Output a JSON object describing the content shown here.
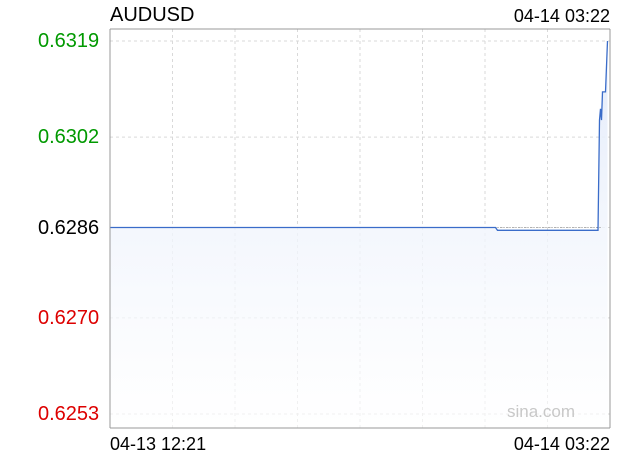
{
  "header": {
    "symbol": "AUDUSD",
    "timestamp": "04-14 03:22"
  },
  "watermark": "sina.com",
  "colors": {
    "up": "#009900",
    "down": "#dd0000",
    "neutral": "#000000",
    "line": "#3a6cc9",
    "fill": "#e3ebfa",
    "grid": "#d9d9d9",
    "axis": "#999999"
  },
  "chart_data": {
    "type": "area",
    "title": "AUDUSD",
    "xlabel": "",
    "ylabel": "",
    "ylim": [
      0.6253,
      0.6319
    ],
    "x_ticks": [
      "04-13 12:21",
      "04-14 03:22"
    ],
    "y_ticks": [
      {
        "label": "0.6319",
        "value": 0.6319,
        "tone": "up"
      },
      {
        "label": "0.6302",
        "value": 0.6302,
        "tone": "up"
      },
      {
        "label": "0.6286",
        "value": 0.6286,
        "tone": "neutral"
      },
      {
        "label": "0.6270",
        "value": 0.627,
        "tone": "down"
      },
      {
        "label": "0.6253",
        "value": 0.6253,
        "tone": "down"
      }
    ],
    "reference_value": 0.6286,
    "grid": true,
    "series": [
      {
        "values": [
          {
            "t": 0.0,
            "v": 0.6286
          },
          {
            "t": 0.771,
            "v": 0.6286
          },
          {
            "t": 0.775,
            "v": 0.62855
          },
          {
            "t": 0.976,
            "v": 0.62855
          },
          {
            "t": 0.979,
            "v": 0.6305
          },
          {
            "t": 0.981,
            "v": 0.6307
          },
          {
            "t": 0.983,
            "v": 0.6305
          },
          {
            "t": 0.985,
            "v": 0.631
          },
          {
            "t": 0.988,
            "v": 0.631
          },
          {
            "t": 0.991,
            "v": 0.631
          },
          {
            "t": 0.995,
            "v": 0.6319
          }
        ]
      }
    ]
  }
}
